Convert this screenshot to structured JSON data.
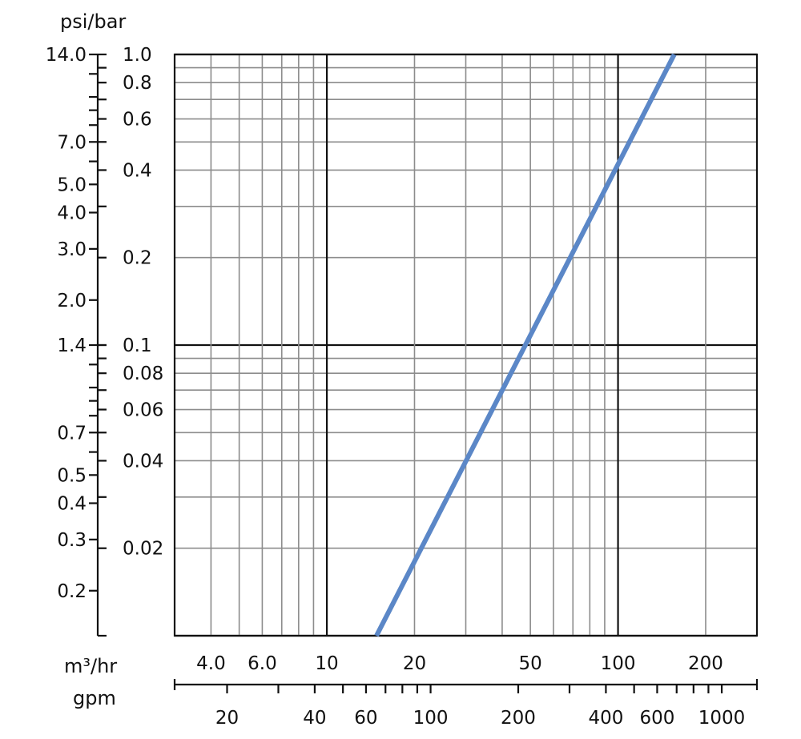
{
  "chart_data": {
    "type": "line",
    "y_unit_label": "psi/bar",
    "x_unit_label_primary": "m³/hr",
    "x_unit_label_secondary": "gpm",
    "x_scale": "log",
    "y_scale": "log",
    "xlim": [
      3,
      300
    ],
    "ylim": [
      0.01,
      1.0
    ],
    "grid": true,
    "colors": {
      "series": "#5b87c7",
      "grid": "#8c8c8c",
      "major_grid": "#111111",
      "axis": "#111111"
    },
    "bar_ticks": [
      "1.0",
      "0.8",
      "0.6",
      "0.4",
      "0.2",
      "0.1",
      "0.08",
      "0.06",
      "0.04",
      "0.02"
    ],
    "psi_ticks": [
      "14.0",
      "7.0",
      "5.0",
      "4.0",
      "3.0",
      "2.0",
      "1.4",
      "0.7",
      "0.5",
      "0.4",
      "0.3",
      "0.2"
    ],
    "m3hr_ticks": [
      "4.0",
      "6.0",
      "10",
      "20",
      "50",
      "100",
      "200"
    ],
    "gpm_ticks": [
      "20",
      "40",
      "60",
      "100",
      "200",
      "400",
      "600",
      "1000"
    ],
    "series": [
      {
        "x": [
          14.8,
          156
        ],
        "y": [
          0.01,
          1.0
        ]
      }
    ]
  }
}
